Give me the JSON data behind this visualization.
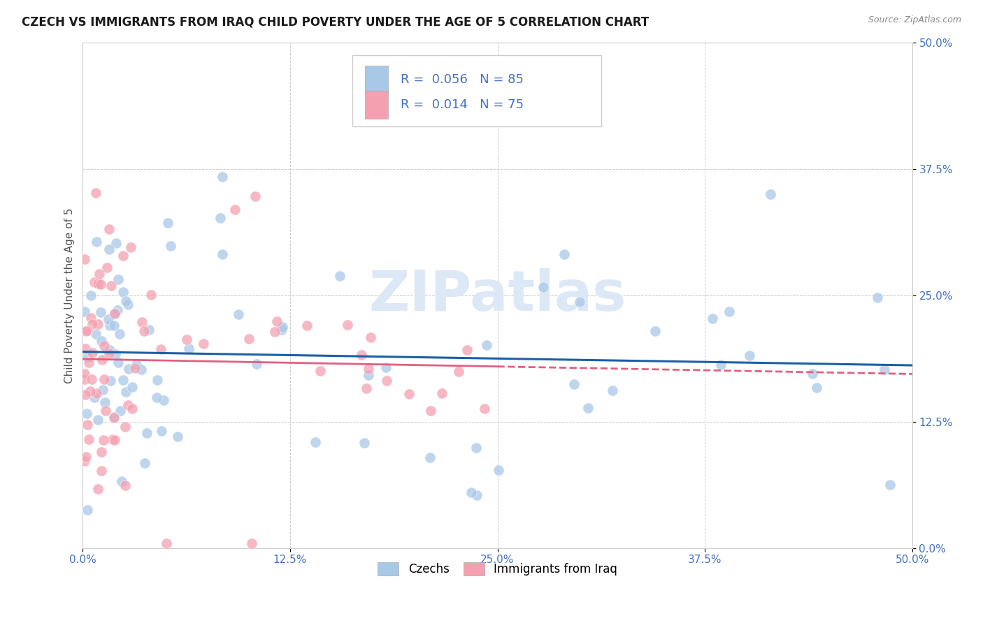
{
  "title": "CZECH VS IMMIGRANTS FROM IRAQ CHILD POVERTY UNDER THE AGE OF 5 CORRELATION CHART",
  "source": "Source: ZipAtlas.com",
  "ylabel": "Child Poverty Under the Age of 5",
  "ytick_labels": [
    "0.0%",
    "12.5%",
    "25.0%",
    "37.5%",
    "50.0%"
  ],
  "ytick_values": [
    0,
    12.5,
    25.0,
    37.5,
    50.0
  ],
  "xtick_labels": [
    "0.0%",
    "12.5%",
    "25.0%",
    "37.5%",
    "50.0%"
  ],
  "xtick_values": [
    0,
    12.5,
    25.0,
    37.5,
    50.0
  ],
  "xlim": [
    0,
    50
  ],
  "ylim": [
    0,
    50
  ],
  "r_czech": 0.056,
  "n_czech": 85,
  "r_iraq": 0.014,
  "n_iraq": 75,
  "color_czech": "#a8c8e8",
  "color_iraq": "#f4a0b0",
  "trendline_color_czech": "#1a5fa8",
  "trendline_color_iraq": "#e06080",
  "watermark_color": "#dce8f5",
  "background_color": "#ffffff",
  "title_fontsize": 12,
  "tick_fontsize": 11,
  "tick_color": "#4472c4",
  "legend_fontsize": 13,
  "source_fontsize": 9
}
